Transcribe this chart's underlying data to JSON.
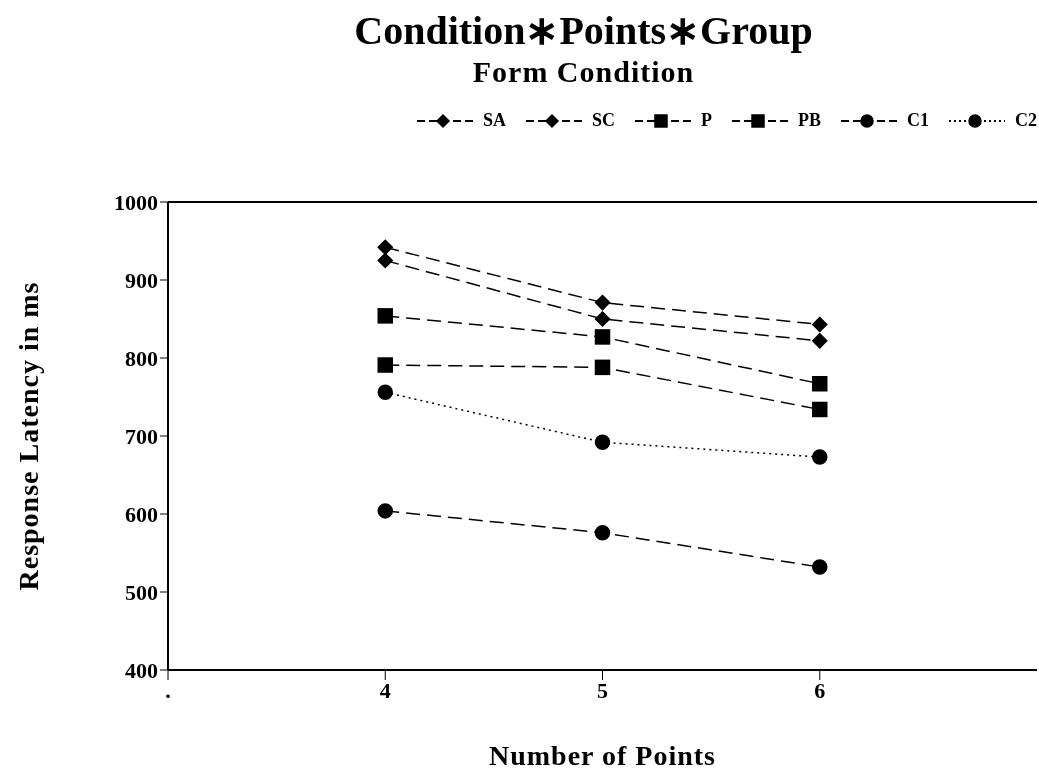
{
  "chart_data": {
    "type": "line",
    "title": "Condition∗Points∗Group",
    "subtitle": "Form  Condition",
    "xlabel": "Number  of  Points",
    "ylabel": "Response  Latency  in  ms",
    "x": [
      4,
      5,
      6
    ],
    "xlim": [
      3,
      7
    ],
    "xticks": [
      {
        "value": 3,
        "label": "."
      },
      4,
      5,
      6
    ],
    "ylim": [
      400,
      1000
    ],
    "yticks": [
      400,
      500,
      600,
      700,
      800,
      900,
      1000
    ],
    "legend": "top",
    "series": [
      {
        "name": "SA",
        "color": "#000000",
        "marker": "diamond",
        "line_style": "dashed",
        "values": [
          925,
          850,
          822
        ]
      },
      {
        "name": "SC",
        "color": "#000000",
        "marker": "diamond",
        "line_style": "dashed",
        "values": [
          942,
          871,
          843
        ]
      },
      {
        "name": "P",
        "color": "#000000",
        "marker": "square",
        "line_style": "dashed",
        "values": [
          854,
          827,
          767
        ]
      },
      {
        "name": "PB",
        "color": "#000000",
        "marker": "square",
        "line_style": "dashed",
        "values": [
          791,
          788,
          734
        ]
      },
      {
        "name": "C1",
        "color": "#000000",
        "marker": "circle",
        "line_style": "dashed",
        "values": [
          604,
          576,
          532
        ]
      },
      {
        "name": "C2",
        "color": "#000000",
        "marker": "circle",
        "line_style": "dotted",
        "values": [
          756,
          692,
          673
        ]
      }
    ]
  }
}
